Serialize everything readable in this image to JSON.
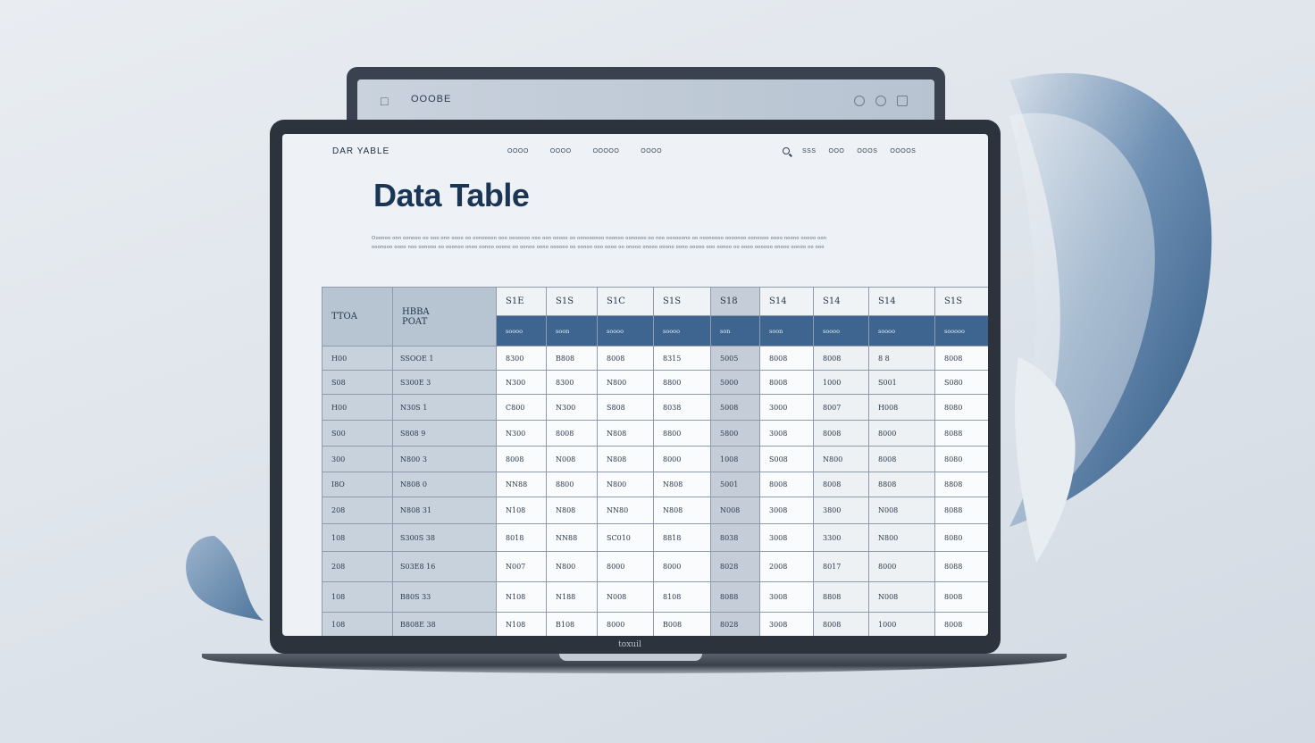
{
  "back_monitor": {
    "brand": "OOOBE",
    "icons": [
      "circle-icon",
      "circle-icon",
      "square-icon"
    ]
  },
  "screen": {
    "brand": "DAR YABLE",
    "nav_links": [
      "OOOO",
      "OOOO",
      "OOOOO",
      "OOOO"
    ],
    "nav_right": [
      "SSS",
      "OOO",
      "OOOS",
      "OOOOS"
    ],
    "title": "Data Table",
    "description": "Ooonoo onn oonooo oo ooo onn oooo oo oonoooon ooo ooooooo noo oon ooooo oo oonooonoo noonoo oonoooo oo noo oooooono oo noonoooo oooonoo oonoooo oooo noono ooooo oon ooonooo oooo noo oonooo oo ooonoo onoo oonoo ooono oo oonoo oono oooooo oo oonoo ooo oooo oo onooo onooo ooono oono ooooo ooo oonoo oo oooo oooooo onooo oonoo oo ooo"
  },
  "table": {
    "left_header_1": "TTOA",
    "left_header_2": [
      "HBBA",
      "POAT"
    ],
    "top_headers": [
      "S1E",
      "S1S",
      "S1C",
      "S1S",
      "S18",
      "S14",
      "S14",
      "S14",
      "S1S"
    ],
    "sub_headers": [
      "soooo",
      "soon",
      "soooo",
      "soooo",
      "son",
      "soon",
      "soooo",
      "soooo",
      "sooooo"
    ],
    "rows": [
      [
        "H00",
        "SSOOE   1",
        "8300",
        "B808",
        "8008",
        "8315",
        "5005",
        "8008",
        "8008",
        "8  8",
        "8008"
      ],
      [
        "S08",
        "S300E   3",
        "N300",
        "8300",
        "N800",
        "8800",
        "5000",
        "8008",
        "1000",
        "S001",
        "S080"
      ],
      [
        "H00",
        "N30S   1",
        "C800",
        "N300",
        "S808",
        "8038",
        "5008",
        "3000",
        "8007",
        "H008",
        "8080"
      ],
      [
        "S00",
        "S808   9",
        "N300",
        "8008",
        "N808",
        "8800",
        "5800",
        "3008",
        "8008",
        "8000",
        "8088"
      ],
      [
        "300",
        "N800   3",
        "8008",
        "N008",
        "N808",
        "8000",
        "1008",
        "S008",
        "N800",
        "8008",
        "8080"
      ],
      [
        "I8O",
        "N808   0",
        "NN88",
        "8800",
        "N800",
        "N808",
        "5001",
        "8008",
        "8008",
        "8808",
        "8808"
      ],
      [
        "208",
        "N808   31",
        "N108",
        "N808",
        "NN80",
        "N808",
        "N008",
        "3008",
        "3800",
        "N008",
        "8088"
      ],
      [
        "108",
        "S300S   38",
        "8018",
        "NN88",
        "SC010",
        "8818",
        "8038",
        "3008",
        "3300",
        "N800",
        "8080"
      ],
      [
        "208",
        "S03E8   16",
        "N007",
        "N800",
        "8000",
        "8000",
        "8028",
        "2008",
        "8017",
        "8000",
        "8088"
      ],
      [
        "108",
        "B80S   33",
        "N108",
        "N188",
        "N008",
        "8108",
        "8088",
        "3008",
        "8808",
        "N008",
        "8008"
      ],
      [
        "108",
        "B808E   38",
        "N108",
        "B108",
        "8000",
        "B008",
        "8028",
        "3008",
        "8008",
        "1000",
        "8008"
      ]
    ]
  },
  "laptop": {
    "brand": "toxuil"
  }
}
